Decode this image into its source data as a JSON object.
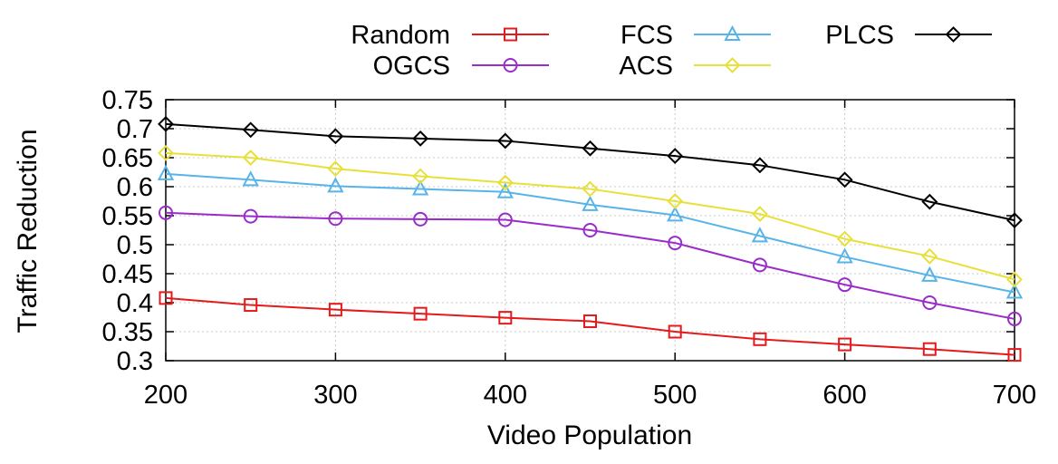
{
  "chart_data": {
    "type": "line",
    "title": "",
    "xlabel": "Video Population",
    "ylabel": "Traffic Reduction",
    "xlim": [
      200,
      700
    ],
    "ylim": [
      0.3,
      0.75
    ],
    "xticks": [
      200,
      300,
      400,
      500,
      600,
      700
    ],
    "yticks": [
      0.3,
      0.35,
      0.4,
      0.45,
      0.5,
      0.55,
      0.6,
      0.65,
      0.7,
      0.75
    ],
    "ytick_labels": [
      "0.3",
      "0.35",
      "0.4",
      "0.45",
      "0.5",
      "0.55",
      "0.6",
      "0.65",
      "0.7",
      "0.75"
    ],
    "grid": true,
    "legend_position": "top",
    "x": [
      200,
      250,
      300,
      350,
      400,
      450,
      500,
      550,
      600,
      650,
      700
    ],
    "series": [
      {
        "name": "Random",
        "color": "#e41a1c",
        "marker": "square",
        "values": [
          0.408,
          0.396,
          0.388,
          0.381,
          0.374,
          0.368,
          0.35,
          0.337,
          0.328,
          0.32,
          0.31
        ]
      },
      {
        "name": "OGCS",
        "color": "#9a2cc9",
        "marker": "circle",
        "values": [
          0.555,
          0.549,
          0.545,
          0.544,
          0.543,
          0.525,
          0.503,
          0.465,
          0.431,
          0.4,
          0.372
        ]
      },
      {
        "name": "FCS",
        "color": "#56b4e9",
        "marker": "triangle",
        "values": [
          0.622,
          0.612,
          0.601,
          0.596,
          0.591,
          0.569,
          0.551,
          0.515,
          0.479,
          0.447,
          0.418
        ]
      },
      {
        "name": "ACS",
        "color": "#e8e03a",
        "marker": "diamond",
        "values": [
          0.658,
          0.65,
          0.631,
          0.618,
          0.607,
          0.596,
          0.575,
          0.553,
          0.51,
          0.48,
          0.44
        ]
      },
      {
        "name": "PLCS",
        "color": "#000000",
        "marker": "diamond",
        "values": [
          0.708,
          0.698,
          0.687,
          0.683,
          0.679,
          0.666,
          0.653,
          0.637,
          0.612,
          0.574,
          0.542
        ]
      }
    ]
  }
}
